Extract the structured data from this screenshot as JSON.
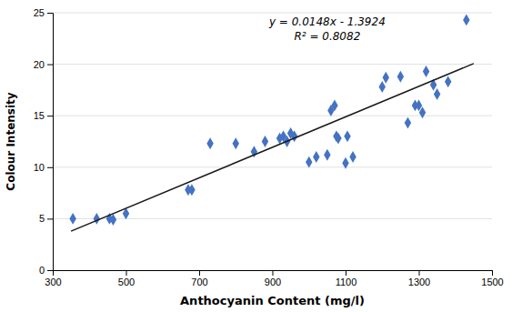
{
  "chart_data": {
    "type": "scatter",
    "xlabel": "Anthocyanin Content (mg/l)",
    "ylabel": "Colour Intensity",
    "series": [
      {
        "type": "scatter",
        "color": "#4472C4",
        "marker": "diamond",
        "x": [
          355,
          420,
          455,
          465,
          500,
          670,
          680,
          730,
          800,
          850,
          880,
          920,
          930,
          940,
          950,
          960,
          1000,
          1020,
          1050,
          1060,
          1070,
          1075,
          1080,
          1100,
          1105,
          1120,
          1200,
          1210,
          1250,
          1270,
          1290,
          1300,
          1310,
          1320,
          1340,
          1350,
          1380,
          1430
        ],
        "values": [
          5.0,
          5.0,
          5.0,
          4.9,
          5.5,
          7.8,
          7.8,
          12.3,
          12.3,
          11.5,
          12.5,
          12.8,
          13.0,
          12.5,
          13.3,
          13.0,
          10.5,
          11.0,
          11.2,
          15.5,
          16.0,
          13.0,
          12.8,
          10.4,
          13.0,
          11.0,
          17.8,
          18.7,
          18.8,
          14.3,
          16.0,
          16.0,
          15.3,
          19.3,
          18.0,
          17.1,
          18.3,
          24.3
        ]
      },
      {
        "type": "line",
        "color": "#1A1A1A",
        "x": [
          350,
          1450
        ],
        "values": [
          3.7876,
          20.0676
        ]
      }
    ],
    "annotations": [
      "y = 0.0148x - 1.3924",
      "R² = 0.8082"
    ],
    "xlim": [
      300,
      1500
    ],
    "ylim": [
      0,
      25
    ],
    "xticks": [
      300,
      500,
      700,
      900,
      1100,
      1300,
      1500
    ],
    "yticks": [
      0,
      5,
      10,
      15,
      20,
      25
    ],
    "grid": true
  }
}
